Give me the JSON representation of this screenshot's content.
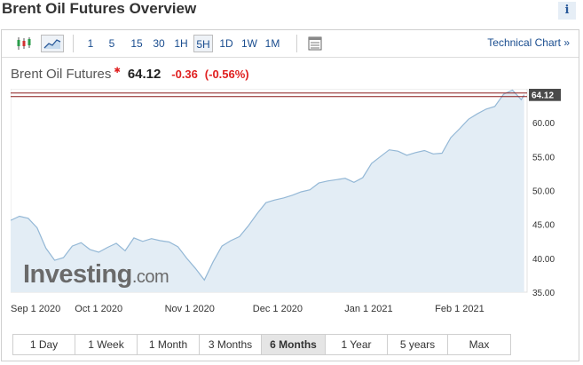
{
  "page_title": "Brent Oil Futures Overview",
  "info_icon": "i",
  "toolbar": {
    "chart_types": [
      "candlestick-icon",
      "area-chart-icon"
    ],
    "intervals": [
      "1",
      "5",
      "15",
      "30",
      "1H",
      "5H",
      "1D",
      "1W",
      "1M"
    ],
    "active_interval": "5H",
    "table_icon": "table-icon",
    "technical_chart": "Technical Chart »"
  },
  "quote": {
    "name": "Brent Oil Futures",
    "marker": "✱",
    "price": "64.12",
    "change": "-0.36",
    "change_pct": "(-0.56%)"
  },
  "colors": {
    "accent": "#1a4d8f",
    "negative": "#e02020",
    "area_fill": "#e3edf5",
    "line": "#94b8d6",
    "price_line": "#8b1a1a"
  },
  "watermark": {
    "brand": "Investing",
    "suffix": ".com"
  },
  "chart_data": {
    "type": "area",
    "y_ticks": [
      "35.00",
      "40.00",
      "45.00",
      "50.00",
      "55.00",
      "60.00"
    ],
    "ylim": [
      35,
      65
    ],
    "x_ticks": [
      "Sep 1 2020",
      "Oct 1 2020",
      "Nov 1 2020",
      "Dec 1 2020",
      "Jan 1 2021",
      "Feb 1 2021"
    ],
    "x_tick_days": [
      0,
      30,
      61,
      91,
      122,
      153
    ],
    "current_price_label": "64.12",
    "current_price": 64.12,
    "series": [
      {
        "x": [
          0,
          3,
          6,
          9,
          12,
          15,
          18,
          21,
          24,
          27,
          30,
          33,
          36,
          39,
          42,
          45,
          48,
          51,
          54,
          57,
          60,
          63,
          66,
          69,
          72,
          75,
          78,
          81,
          84,
          87,
          90,
          93,
          96,
          99,
          102,
          105,
          108,
          111,
          114,
          117,
          120,
          123,
          126,
          129,
          132,
          135,
          138,
          141,
          144,
          147,
          150,
          153,
          156,
          159,
          162,
          165,
          168,
          171,
          174,
          175
        ],
        "values": [
          45.6,
          46.2,
          45.9,
          44.5,
          41.5,
          39.7,
          40.1,
          41.8,
          42.3,
          41.3,
          40.9,
          41.6,
          42.2,
          41.1,
          43.0,
          42.5,
          42.9,
          42.6,
          42.4,
          41.7,
          40.0,
          38.5,
          36.8,
          39.5,
          41.8,
          42.6,
          43.2,
          44.8,
          46.6,
          48.2,
          48.6,
          48.9,
          49.3,
          49.8,
          50.1,
          51.1,
          51.4,
          51.6,
          51.8,
          51.2,
          51.9,
          54.0,
          55.0,
          56.0,
          55.8,
          55.2,
          55.6,
          55.9,
          55.4,
          55.5,
          57.8,
          59.1,
          60.5,
          61.3,
          62.0,
          62.4,
          64.2,
          64.8,
          63.4,
          64.12
        ]
      }
    ]
  },
  "ranges": [
    "1 Day",
    "1 Week",
    "1 Month",
    "3 Months",
    "6 Months",
    "1 Year",
    "5 years",
    "Max"
  ],
  "active_range": "6 Months"
}
